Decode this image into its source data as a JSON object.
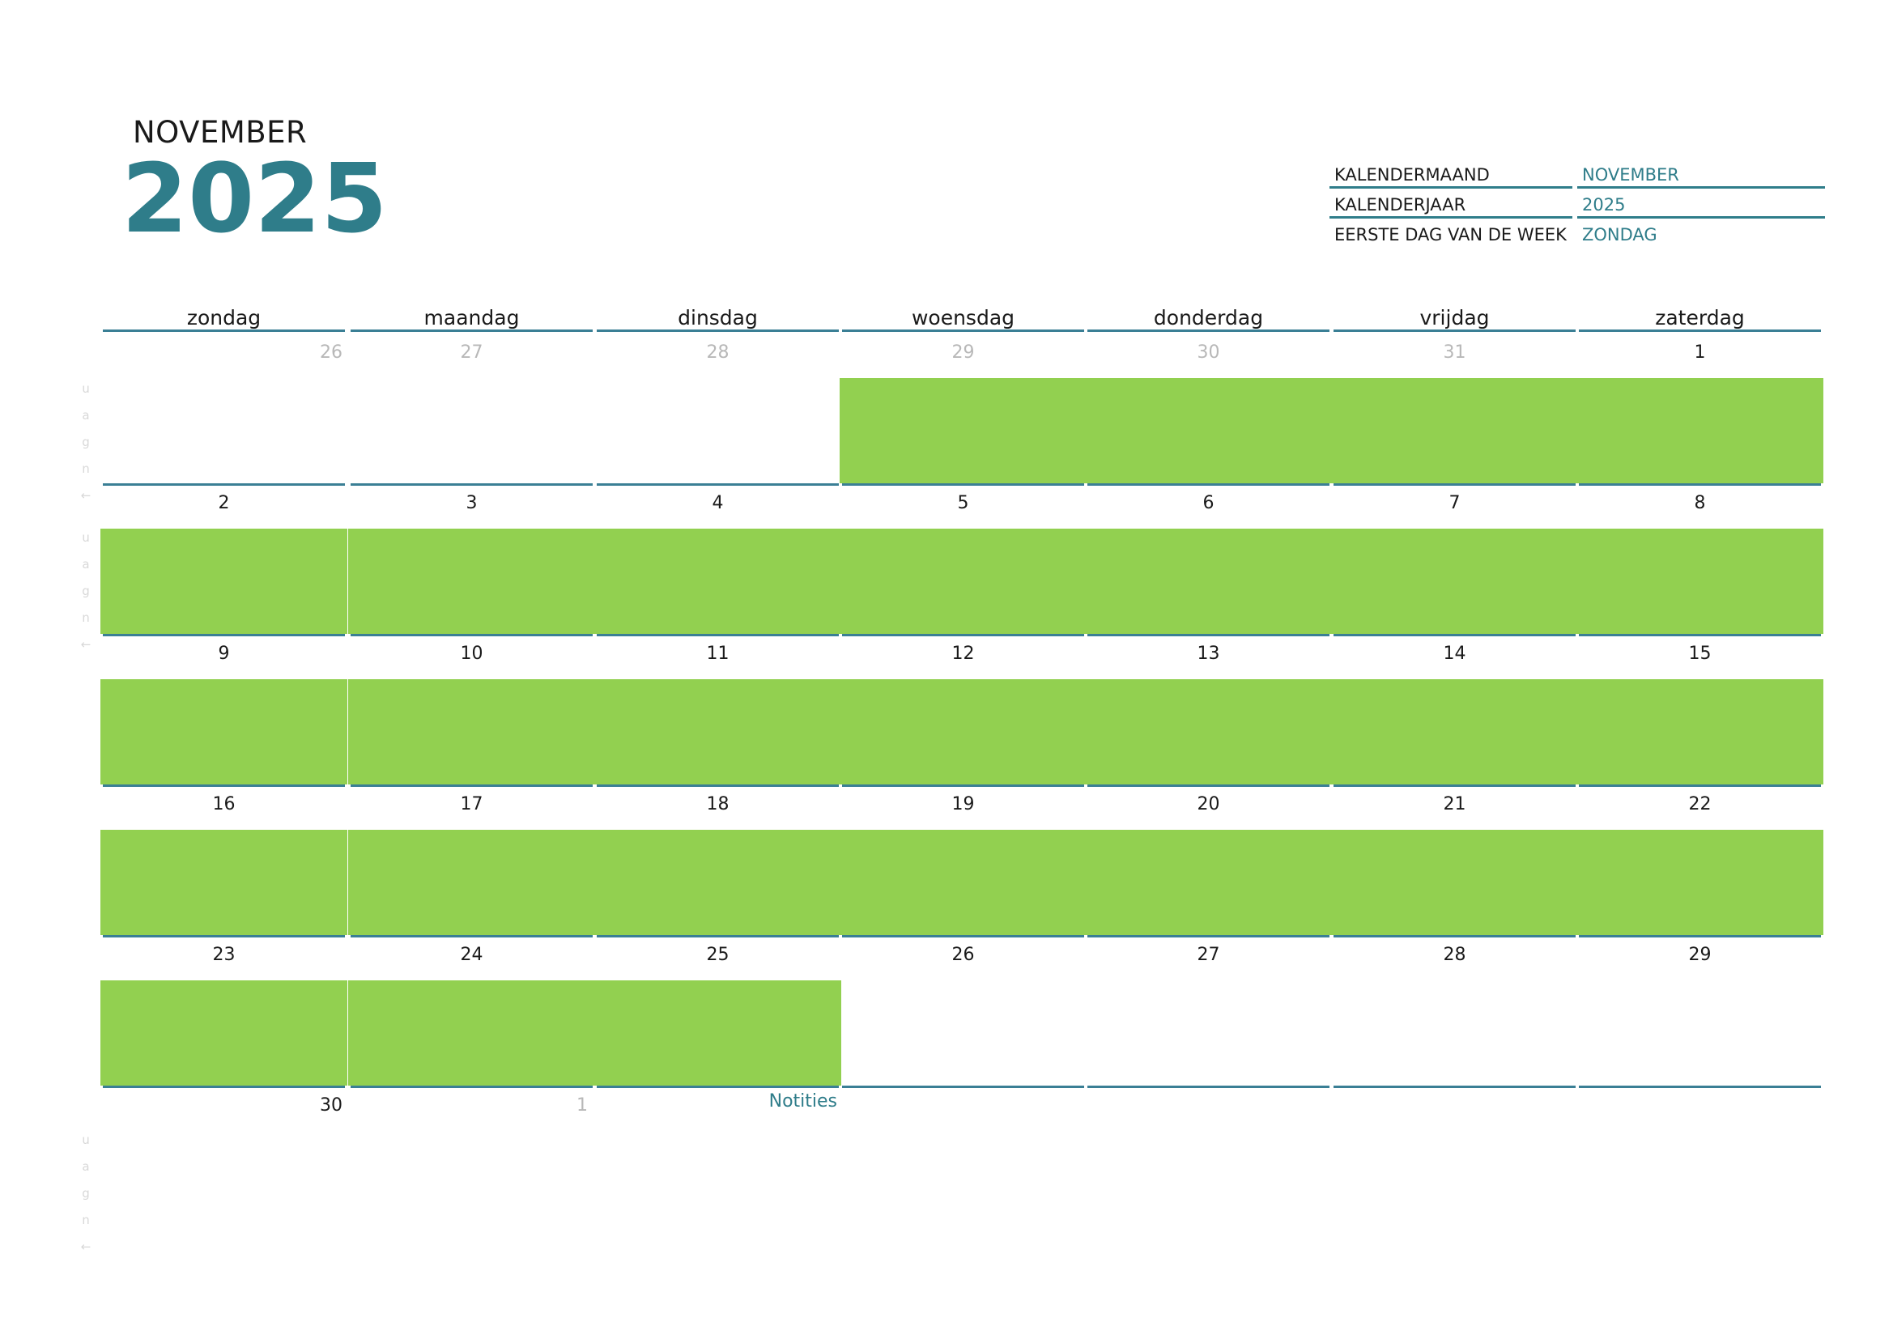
{
  "header": {
    "month": "NOVEMBER",
    "year": "2025"
  },
  "settings": [
    {
      "label": "KALENDERMAAND",
      "value": "NOVEMBER"
    },
    {
      "label": "KALENDERJAAR",
      "value": "2025"
    },
    {
      "label": "EERSTE DAG VAN DE WEEK",
      "value": "ZONDAG"
    }
  ],
  "weekdays": [
    "zondag",
    "maandag",
    "dinsdag",
    "woensdag",
    "donderdag",
    "vrijdag",
    "zaterdag"
  ],
  "weeks": [
    [
      {
        "day": "26",
        "current": false,
        "filled": false
      },
      {
        "day": "27",
        "current": false,
        "filled": false
      },
      {
        "day": "28",
        "current": false,
        "filled": false
      },
      {
        "day": "29",
        "current": false,
        "filled": true
      },
      {
        "day": "30",
        "current": false,
        "filled": true
      },
      {
        "day": "31",
        "current": false,
        "filled": true
      },
      {
        "day": "1",
        "current": true,
        "filled": true
      }
    ],
    [
      {
        "day": "2",
        "current": true,
        "filled": true
      },
      {
        "day": "3",
        "current": true,
        "filled": true
      },
      {
        "day": "4",
        "current": true,
        "filled": true
      },
      {
        "day": "5",
        "current": true,
        "filled": true
      },
      {
        "day": "6",
        "current": true,
        "filled": true
      },
      {
        "day": "7",
        "current": true,
        "filled": true
      },
      {
        "day": "8",
        "current": true,
        "filled": true
      }
    ],
    [
      {
        "day": "9",
        "current": true,
        "filled": true
      },
      {
        "day": "10",
        "current": true,
        "filled": true
      },
      {
        "day": "11",
        "current": true,
        "filled": true
      },
      {
        "day": "12",
        "current": true,
        "filled": true
      },
      {
        "day": "13",
        "current": true,
        "filled": true
      },
      {
        "day": "14",
        "current": true,
        "filled": true
      },
      {
        "day": "15",
        "current": true,
        "filled": true
      }
    ],
    [
      {
        "day": "16",
        "current": true,
        "filled": true
      },
      {
        "day": "17",
        "current": true,
        "filled": true
      },
      {
        "day": "18",
        "current": true,
        "filled": true
      },
      {
        "day": "19",
        "current": true,
        "filled": true
      },
      {
        "day": "20",
        "current": true,
        "filled": true
      },
      {
        "day": "21",
        "current": true,
        "filled": true
      },
      {
        "day": "22",
        "current": true,
        "filled": true
      }
    ],
    [
      {
        "day": "23",
        "current": true,
        "filled": true
      },
      {
        "day": "24",
        "current": true,
        "filled": true
      },
      {
        "day": "25",
        "current": true,
        "filled": true
      },
      {
        "day": "26",
        "current": true,
        "filled": false
      },
      {
        "day": "27",
        "current": true,
        "filled": false
      },
      {
        "day": "28",
        "current": true,
        "filled": false
      },
      {
        "day": "29",
        "current": true,
        "filled": false
      }
    ]
  ],
  "trailing": [
    {
      "day": "30",
      "current": true
    },
    {
      "day": "1",
      "current": false
    }
  ],
  "notes_label": "Notities",
  "side_label": "u a g n ←",
  "colors": {
    "accent": "#2f7d8a",
    "fill": "#92d050",
    "muted": "#b8b8b8"
  }
}
